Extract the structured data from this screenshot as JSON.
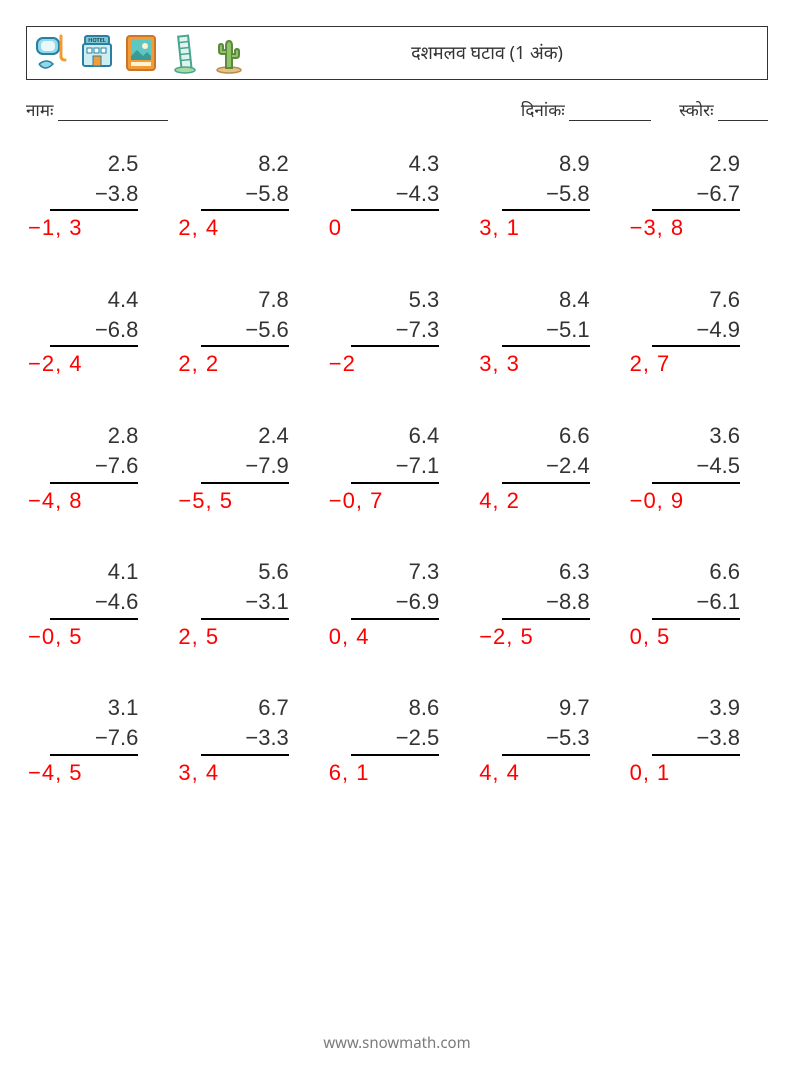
{
  "header": {
    "title": "दशमलव घटाव (1 अंक)"
  },
  "meta": {
    "name_label": "नामः",
    "date_label": "दिनांकः",
    "score_label": "स्कोरः"
  },
  "icons": [
    {
      "name": "snorkel-icon"
    },
    {
      "name": "hotel-icon"
    },
    {
      "name": "picture-icon"
    },
    {
      "name": "tower-icon"
    },
    {
      "name": "cactus-icon"
    }
  ],
  "worksheet": {
    "type": "subtraction-grid",
    "rows": 5,
    "cols": 5,
    "font_size": 22,
    "answer_color": "#ff0000",
    "text_color": "#333333",
    "border_color": "#000000",
    "problems": [
      {
        "a": "2.5",
        "b": "−3.8",
        "ans": "−1, 3"
      },
      {
        "a": "8.2",
        "b": "−5.8",
        "ans": "2, 4"
      },
      {
        "a": "4.3",
        "b": "−4.3",
        "ans": "0"
      },
      {
        "a": "8.9",
        "b": "−5.8",
        "ans": "3, 1"
      },
      {
        "a": "2.9",
        "b": "−6.7",
        "ans": "−3, 8"
      },
      {
        "a": "4.4",
        "b": "−6.8",
        "ans": "−2, 4"
      },
      {
        "a": "7.8",
        "b": "−5.6",
        "ans": "2, 2"
      },
      {
        "a": "5.3",
        "b": "−7.3",
        "ans": "−2"
      },
      {
        "a": "8.4",
        "b": "−5.1",
        "ans": "3, 3"
      },
      {
        "a": "7.6",
        "b": "−4.9",
        "ans": "2, 7"
      },
      {
        "a": "2.8",
        "b": "−7.6",
        "ans": "−4, 8"
      },
      {
        "a": "2.4",
        "b": "−7.9",
        "ans": "−5, 5"
      },
      {
        "a": "6.4",
        "b": "−7.1",
        "ans": "−0, 7"
      },
      {
        "a": "6.6",
        "b": "−2.4",
        "ans": "4, 2"
      },
      {
        "a": "3.6",
        "b": "−4.5",
        "ans": "−0, 9"
      },
      {
        "a": "4.1",
        "b": "−4.6",
        "ans": "−0, 5"
      },
      {
        "a": "5.6",
        "b": "−3.1",
        "ans": "2, 5"
      },
      {
        "a": "7.3",
        "b": "−6.9",
        "ans": "0, 4"
      },
      {
        "a": "6.3",
        "b": "−8.8",
        "ans": "−2, 5"
      },
      {
        "a": "6.6",
        "b": "−6.1",
        "ans": "0, 5"
      },
      {
        "a": "3.1",
        "b": "−7.6",
        "ans": "−4, 5"
      },
      {
        "a": "6.7",
        "b": "−3.3",
        "ans": "3, 4"
      },
      {
        "a": "8.6",
        "b": "−2.5",
        "ans": "6, 1"
      },
      {
        "a": "9.7",
        "b": "−5.3",
        "ans": "4, 4"
      },
      {
        "a": "3.9",
        "b": "−3.8",
        "ans": "0, 1"
      }
    ]
  },
  "footer": {
    "url": "www.snowmath.com"
  }
}
